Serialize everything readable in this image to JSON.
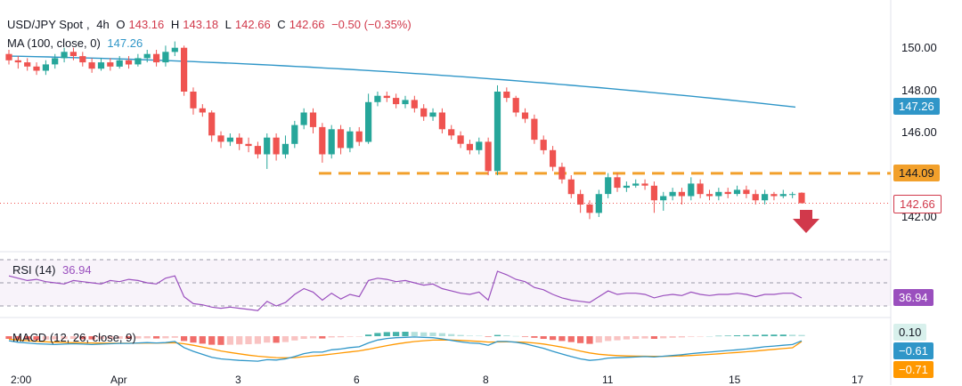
{
  "chart_data": {
    "type": "candlestick",
    "symbol": "USD/JPY Spot",
    "interval": "4h",
    "ohlc_summary": {
      "O": "143.16",
      "H": "143.18",
      "L": "142.66",
      "C": "142.66",
      "change": "−0.50 (−0.35%)"
    },
    "y_ticks": [
      "150.00",
      "148.00",
      "146.00",
      "144.00",
      "142.00"
    ],
    "price_range": [
      140.8,
      151.0
    ],
    "x_ticks": [
      "2:00",
      "Apr",
      "3",
      "6",
      "8",
      "11",
      "15",
      "17"
    ],
    "ma": {
      "label": "MA (100, close, 0)",
      "value": "147.26",
      "start": 149.7,
      "end": 147.26
    },
    "support_level": {
      "label": "144.09",
      "value": 144.09
    },
    "last_price": {
      "label": "142.66",
      "value": 142.66
    },
    "candles": [
      [
        149.8,
        149.5,
        150.0,
        149.3
      ],
      [
        149.5,
        149.4,
        149.7,
        149.1
      ],
      [
        149.4,
        149.2,
        149.6,
        149.0
      ],
      [
        149.2,
        149.0,
        149.4,
        148.8
      ],
      [
        149.0,
        149.3,
        149.5,
        148.8
      ],
      [
        149.3,
        149.6,
        149.8,
        149.1
      ],
      [
        149.6,
        149.9,
        150.1,
        149.4
      ],
      [
        149.9,
        149.7,
        150.1,
        149.5
      ],
      [
        149.7,
        149.4,
        149.9,
        149.2
      ],
      [
        149.4,
        149.1,
        149.6,
        148.9
      ],
      [
        149.1,
        149.4,
        149.6,
        149.0
      ],
      [
        149.4,
        149.2,
        149.6,
        149.0
      ],
      [
        149.2,
        149.5,
        149.7,
        149.1
      ],
      [
        149.5,
        149.3,
        149.7,
        149.1
      ],
      [
        149.3,
        149.6,
        149.8,
        149.2
      ],
      [
        149.6,
        149.8,
        150.0,
        149.4
      ],
      [
        149.8,
        149.4,
        150.0,
        149.2
      ],
      [
        149.4,
        149.9,
        150.2,
        149.2
      ],
      [
        149.9,
        150.1,
        150.4,
        149.7
      ],
      [
        150.1,
        148.0,
        150.2,
        147.8
      ],
      [
        148.0,
        147.2,
        148.2,
        146.9
      ],
      [
        147.2,
        147.0,
        147.4,
        146.8
      ],
      [
        147.0,
        145.9,
        147.1,
        145.6
      ],
      [
        145.9,
        145.6,
        146.1,
        145.3
      ],
      [
        145.6,
        145.8,
        146.0,
        145.4
      ],
      [
        145.8,
        145.5,
        146.0,
        145.2
      ],
      [
        145.5,
        145.4,
        145.8,
        145.1
      ],
      [
        145.4,
        145.0,
        145.6,
        144.8
      ],
      [
        145.0,
        145.8,
        146.0,
        144.3
      ],
      [
        145.8,
        145.0,
        146.0,
        144.7
      ],
      [
        145.0,
        145.5,
        145.9,
        144.8
      ],
      [
        145.5,
        146.4,
        146.6,
        145.3
      ],
      [
        146.4,
        147.0,
        147.2,
        146.2
      ],
      [
        147.0,
        146.3,
        147.2,
        146.0
      ],
      [
        146.3,
        145.0,
        146.5,
        144.6
      ],
      [
        145.0,
        146.2,
        146.4,
        144.8
      ],
      [
        146.2,
        145.3,
        146.4,
        145.0
      ],
      [
        145.3,
        146.1,
        146.3,
        145.1
      ],
      [
        146.1,
        145.6,
        146.3,
        145.4
      ],
      [
        145.6,
        147.5,
        147.9,
        145.5
      ],
      [
        147.5,
        147.8,
        148.0,
        147.3
      ],
      [
        147.8,
        147.7,
        148.0,
        147.5
      ],
      [
        147.7,
        147.4,
        147.9,
        147.2
      ],
      [
        147.4,
        147.6,
        147.8,
        147.2
      ],
      [
        147.6,
        147.2,
        147.8,
        147.0
      ],
      [
        147.2,
        146.8,
        147.4,
        146.6
      ],
      [
        146.8,
        147.0,
        147.2,
        146.6
      ],
      [
        147.0,
        146.2,
        147.2,
        146.0
      ],
      [
        146.2,
        145.9,
        146.4,
        145.7
      ],
      [
        145.9,
        145.5,
        146.1,
        145.3
      ],
      [
        145.5,
        145.2,
        145.7,
        145.0
      ],
      [
        145.2,
        145.6,
        145.8,
        145.0
      ],
      [
        145.6,
        144.2,
        145.8,
        144.0
      ],
      [
        144.2,
        148.0,
        148.3,
        144.0
      ],
      [
        148.0,
        147.7,
        148.2,
        147.5
      ],
      [
        147.7,
        147.0,
        147.8,
        146.8
      ],
      [
        147.0,
        146.7,
        147.2,
        146.5
      ],
      [
        146.7,
        145.7,
        146.9,
        145.5
      ],
      [
        145.7,
        145.2,
        145.9,
        145.0
      ],
      [
        145.2,
        144.4,
        145.4,
        144.2
      ],
      [
        144.4,
        143.8,
        144.6,
        143.6
      ],
      [
        143.8,
        143.1,
        144.0,
        142.9
      ],
      [
        143.1,
        142.6,
        143.3,
        142.2
      ],
      [
        142.6,
        142.2,
        142.8,
        141.9
      ],
      [
        142.2,
        143.1,
        143.3,
        142.0
      ],
      [
        143.1,
        143.9,
        144.1,
        142.9
      ],
      [
        143.9,
        143.4,
        144.1,
        143.2
      ],
      [
        143.4,
        143.5,
        143.7,
        143.2
      ],
      [
        143.5,
        143.6,
        143.8,
        143.4
      ],
      [
        143.6,
        143.5,
        143.8,
        143.3
      ],
      [
        143.5,
        142.8,
        143.7,
        142.2
      ],
      [
        142.8,
        143.0,
        143.2,
        142.3
      ],
      [
        143.0,
        143.2,
        143.4,
        142.8
      ],
      [
        143.2,
        143.0,
        143.4,
        142.6
      ],
      [
        143.0,
        143.6,
        143.9,
        142.8
      ],
      [
        143.6,
        143.1,
        143.8,
        142.9
      ],
      [
        143.1,
        143.0,
        143.3,
        142.8
      ],
      [
        143.0,
        143.2,
        143.4,
        142.8
      ],
      [
        143.2,
        143.1,
        143.4,
        142.9
      ],
      [
        143.1,
        143.3,
        143.5,
        143.0
      ],
      [
        143.3,
        143.1,
        143.5,
        142.9
      ],
      [
        143.1,
        142.8,
        143.3,
        142.6
      ],
      [
        142.8,
        143.1,
        143.3,
        142.6
      ],
      [
        143.1,
        143.0,
        143.2,
        142.8
      ],
      [
        143.0,
        143.1,
        143.3,
        142.9
      ],
      [
        143.1,
        143.1,
        143.2,
        142.9
      ],
      [
        143.16,
        142.66,
        143.18,
        142.66
      ]
    ],
    "rsi": {
      "label": "RSI (14)",
      "value": "36.94",
      "value_num": 36.94,
      "values": [
        56,
        54,
        52,
        53,
        51,
        50,
        49,
        52,
        51,
        50,
        49,
        52,
        51,
        53,
        52,
        50,
        49,
        54,
        56,
        38,
        32,
        31,
        29,
        28,
        29,
        28,
        27,
        26,
        34,
        30,
        33,
        40,
        45,
        42,
        35,
        41,
        36,
        40,
        38,
        52,
        54,
        53,
        51,
        52,
        50,
        48,
        49,
        45,
        43,
        41,
        40,
        42,
        35,
        60,
        57,
        53,
        51,
        46,
        44,
        40,
        37,
        35,
        34,
        33,
        38,
        43,
        40,
        41,
        41,
        40,
        37,
        39,
        40,
        39,
        42,
        40,
        39,
        40,
        40,
        41,
        40,
        38,
        40,
        40,
        41,
        41,
        36.94
      ]
    },
    "macd": {
      "label": "MACD (12, 26, close, 9)",
      "value": "0.10",
      "macd_value": "−0.61",
      "signal_value": "−0.71",
      "values": [
        0.1,
        -0.61,
        -0.71
      ],
      "histogram": [
        -0.25,
        -0.3,
        -0.3,
        -0.35,
        -0.32,
        -0.3,
        -0.26,
        -0.25,
        -0.28,
        -0.3,
        -0.27,
        -0.26,
        -0.24,
        -0.25,
        -0.22,
        -0.2,
        -0.22,
        -0.2,
        -0.15,
        -0.45,
        -0.6,
        -0.7,
        -0.8,
        -0.82,
        -0.8,
        -0.78,
        -0.75,
        -0.72,
        -0.6,
        -0.62,
        -0.55,
        -0.4,
        -0.25,
        -0.2,
        -0.22,
        -0.12,
        -0.1,
        -0.05,
        -0.03,
        0.15,
        0.3,
        0.38,
        0.4,
        0.42,
        0.4,
        0.36,
        0.34,
        0.28,
        0.2,
        0.12,
        0.05,
        0.04,
        -0.05,
        0.12,
        0.08,
        0.02,
        -0.05,
        -0.15,
        -0.25,
        -0.35,
        -0.45,
        -0.55,
        -0.65,
        -0.72,
        -0.6,
        -0.45,
        -0.38,
        -0.3,
        -0.25,
        -0.22,
        -0.25,
        -0.2,
        -0.15,
        -0.12,
        -0.05,
        -0.04,
        0.0,
        0.03,
        0.05,
        0.08,
        0.1,
        0.12,
        0.14,
        0.15,
        0.15,
        0.14,
        0.12
      ],
      "macd_line": [
        -0.6,
        -0.8,
        -0.9,
        -1.0,
        -1.05,
        -1.1,
        -1.05,
        -1.0,
        -1.05,
        -1.1,
        -1.05,
        -1.0,
        -0.95,
        -0.95,
        -0.9,
        -0.85,
        -0.9,
        -0.85,
        -0.7,
        -1.5,
        -2.0,
        -2.4,
        -2.8,
        -3.0,
        -3.1,
        -3.2,
        -3.25,
        -3.3,
        -3.1,
        -3.15,
        -3.0,
        -2.7,
        -2.3,
        -2.1,
        -2.1,
        -1.8,
        -1.7,
        -1.5,
        -1.4,
        -0.9,
        -0.5,
        -0.3,
        -0.2,
        -0.15,
        -0.1,
        -0.15,
        -0.2,
        -0.35,
        -0.55,
        -0.75,
        -0.9,
        -0.95,
        -1.2,
        -0.7,
        -0.7,
        -0.8,
        -1.0,
        -1.3,
        -1.6,
        -2.0,
        -2.35,
        -2.7,
        -3.0,
        -3.2,
        -3.1,
        -2.9,
        -2.85,
        -2.8,
        -2.75,
        -2.7,
        -2.75,
        -2.65,
        -2.55,
        -2.45,
        -2.3,
        -2.2,
        -2.1,
        -2.0,
        -1.9,
        -1.8,
        -1.7,
        -1.55,
        -1.4,
        -1.3,
        -1.2,
        -1.1,
        -0.61
      ],
      "signal_line": [
        -0.4,
        -0.5,
        -0.6,
        -0.68,
        -0.74,
        -0.8,
        -0.84,
        -0.86,
        -0.88,
        -0.9,
        -0.92,
        -0.93,
        -0.93,
        -0.93,
        -0.92,
        -0.91,
        -0.91,
        -0.9,
        -0.87,
        -1.0,
        -1.2,
        -1.45,
        -1.7,
        -1.95,
        -2.15,
        -2.33,
        -2.5,
        -2.65,
        -2.75,
        -2.83,
        -2.86,
        -2.83,
        -2.72,
        -2.6,
        -2.5,
        -2.36,
        -2.22,
        -2.08,
        -1.94,
        -1.73,
        -1.48,
        -1.25,
        -1.04,
        -0.86,
        -0.71,
        -0.6,
        -0.52,
        -0.49,
        -0.5,
        -0.55,
        -0.62,
        -0.68,
        -0.78,
        -0.76,
        -0.75,
        -0.76,
        -0.8,
        -0.9,
        -1.04,
        -1.23,
        -1.45,
        -1.7,
        -1.96,
        -2.21,
        -2.39,
        -2.49,
        -2.56,
        -2.61,
        -2.64,
        -2.65,
        -2.67,
        -2.67,
        -2.65,
        -2.61,
        -2.55,
        -2.48,
        -2.41,
        -2.33,
        -2.24,
        -2.15,
        -2.06,
        -1.96,
        -1.85,
        -1.74,
        -1.64,
        -1.53,
        -0.71
      ]
    },
    "colors": {
      "up": "#26a69a",
      "down": "#ef5350",
      "ma": "#2f96c8",
      "support": "#f2a02b",
      "rsi": "#9a4fbe",
      "macd": "#2f96c8",
      "signal": "#ff9800",
      "arrow": "#d1394b"
    }
  }
}
